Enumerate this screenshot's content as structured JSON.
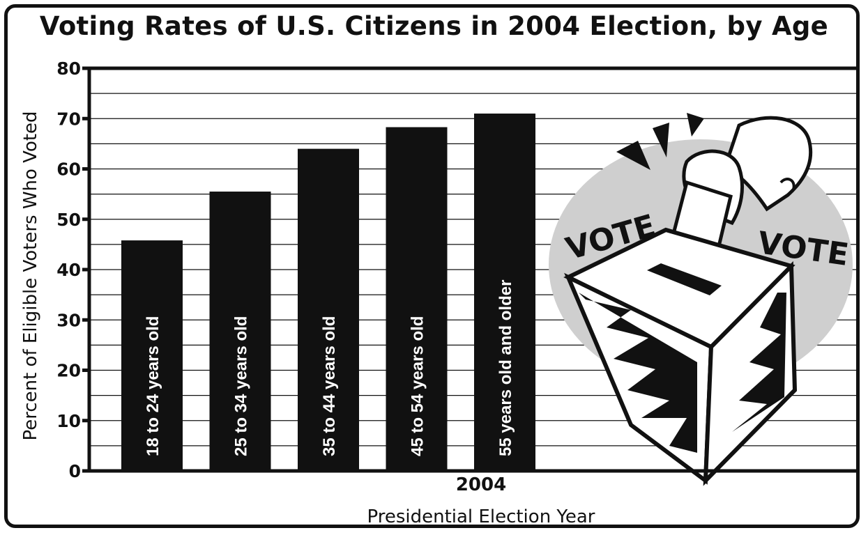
{
  "chart_data": {
    "type": "bar",
    "title": "Voting Rates of U.S. Citizens in 2004 Election, by Age",
    "xlabel": "Presidential Election Year",
    "x_tick": "2004",
    "ylabel": "Percent of Eligible Voters Who Voted",
    "ylim": [
      0,
      80
    ],
    "yticks": [
      "0",
      "10",
      "20",
      "30",
      "40",
      "50",
      "60",
      "70",
      "80"
    ],
    "grid": true,
    "categories": [
      "18 to 24 years old",
      "25 to 34 years old",
      "35 to 44 years old",
      "45 to 54 years old",
      "55 years old and older"
    ],
    "values": [
      45.8,
      55.5,
      64,
      68.3,
      71
    ],
    "colors": {
      "bar": "#111111",
      "label": "#ffffff",
      "grid": "#111111",
      "badge": "#cfcfcf"
    }
  },
  "illustration": {
    "icon": "ballot-box-icon",
    "left_text": "VOTE",
    "right_text": "VOTE"
  }
}
